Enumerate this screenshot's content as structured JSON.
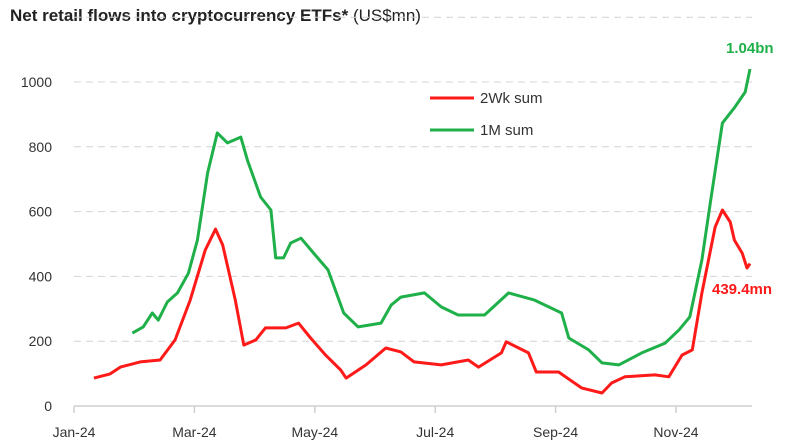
{
  "chart_data": {
    "type": "line",
    "title": "Net retail flows into cryptocurrency ETFs*",
    "title_unit": "(US$mn)",
    "xlabel": "",
    "ylabel": "",
    "x_unit": "months since Jan-24",
    "xlim": [
      0,
      11.5
    ],
    "ylim": [
      0,
      1200
    ],
    "yticks": [
      0,
      200,
      400,
      600,
      800,
      1000
    ],
    "xticks": [
      {
        "value": 0,
        "label": "Jan-24"
      },
      {
        "value": 2,
        "label": "Mar-24"
      },
      {
        "value": 4,
        "label": "May-24"
      },
      {
        "value": 6,
        "label": "Jul-24"
      },
      {
        "value": 8,
        "label": "Sep-24"
      },
      {
        "value": 10,
        "label": "Nov-24"
      }
    ],
    "grid": "horizontal-dashed",
    "legend_position": "top-center",
    "series": [
      {
        "name": "2Wk sum",
        "color": "#ff1a1a",
        "x": [
          0.33,
          0.6,
          0.77,
          1.1,
          1.43,
          1.68,
          1.93,
          2.18,
          2.35,
          2.47,
          2.68,
          2.82,
          3.02,
          3.18,
          3.52,
          3.73,
          3.93,
          4.18,
          4.43,
          4.52,
          4.85,
          5.18,
          5.43,
          5.65,
          6.1,
          6.55,
          6.72,
          7.1,
          7.18,
          7.55,
          7.68,
          8.05,
          8.43,
          8.77,
          8.93,
          9.15,
          9.65,
          9.88,
          10.1,
          10.27,
          10.43,
          10.65,
          10.77,
          10.9,
          10.97,
          11.1,
          11.18,
          11.23
        ],
        "y": [
          86,
          99,
          120,
          136,
          142,
          204,
          327,
          481,
          546,
          497,
          327,
          188,
          204,
          241,
          241,
          256,
          210,
          157,
          111,
          86,
          127,
          179,
          167,
          136,
          127,
          142,
          120,
          164,
          198,
          164,
          105,
          105,
          56,
          40,
          71,
          90,
          96,
          90,
          157,
          173,
          349,
          552,
          605,
          568,
          512,
          472,
          426,
          439.4
        ]
      },
      {
        "name": "1M sum",
        "color": "#1fb04a",
        "x": [
          0.97,
          1.15,
          1.3,
          1.4,
          1.55,
          1.72,
          1.9,
          2.05,
          2.22,
          2.38,
          2.55,
          2.77,
          2.88,
          3.1,
          3.27,
          3.35,
          3.48,
          3.6,
          3.77,
          3.98,
          4.22,
          4.48,
          4.72,
          5.1,
          5.27,
          5.43,
          5.82,
          6.1,
          6.38,
          6.82,
          7.22,
          7.65,
          8.1,
          8.22,
          8.55,
          8.77,
          9.05,
          9.43,
          9.82,
          10.05,
          10.23,
          10.43,
          10.57,
          10.77,
          10.98,
          11.15,
          11.23
        ],
        "y": [
          225,
          244,
          287,
          265,
          321,
          349,
          410,
          512,
          719,
          843,
          812,
          830,
          759,
          645,
          605,
          457,
          457,
          503,
          518,
          472,
          420,
          287,
          244,
          256,
          312,
          336,
          349,
          306,
          281,
          281,
          349,
          327,
          287,
          210,
          173,
          133,
          127,
          164,
          194,
          235,
          275,
          451,
          627,
          873,
          923,
          969,
          1040
        ]
      }
    ],
    "annotations": [
      {
        "text": "1.04bn",
        "series": "1M sum",
        "color": "#1fb04a"
      },
      {
        "text": "439.4mn",
        "series": "2Wk sum",
        "color": "#ff1a1a"
      }
    ]
  }
}
